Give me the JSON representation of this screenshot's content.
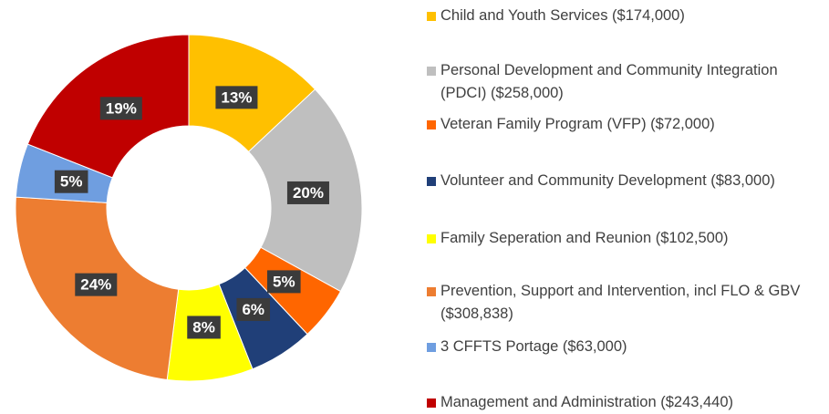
{
  "chart_data": {
    "type": "pie",
    "categories": [
      "Child and Youth Services ($174,000)",
      "Personal Development and Community Integration (PDCI) ($258,000)",
      "Veteran Family Program (VFP) ($72,000)",
      "Volunteer and Community Development ($83,000)",
      "Family Seperation and Reunion ($102,500)",
      "Prevention, Support and Intervention, incl FLO & GBV ($308,838)",
      "3 CFFTS Portage ($63,000)",
      "Management and Administration ($243,440)"
    ],
    "values": [
      13,
      20,
      5,
      6,
      8,
      24,
      5,
      19
    ],
    "value_labels": [
      "13%",
      "20%",
      "5%",
      "6%",
      "8%",
      "24%",
      "5%",
      "19%"
    ],
    "colors": [
      "#ffc000",
      "#bfbfbf",
      "#ff6600",
      "#203f78",
      "#ffff00",
      "#ed7d31",
      "#6f9ee0",
      "#c00000"
    ],
    "legend": "right"
  }
}
